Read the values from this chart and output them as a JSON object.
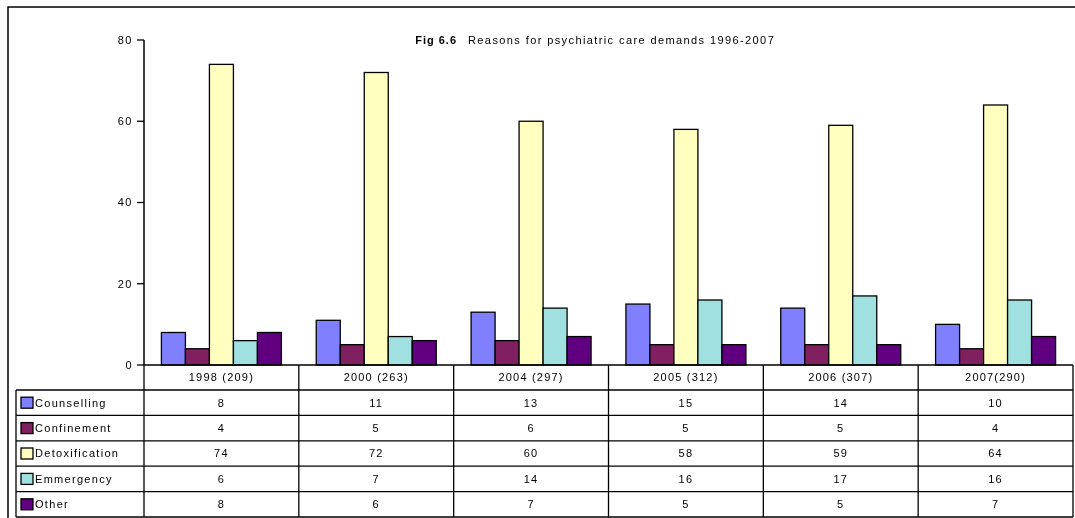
{
  "chart_data": {
    "type": "bar",
    "title": "Fig 6.6",
    "subtitle": "Reasons for psychiatric care demands 1996-2007",
    "categories": [
      "1998 (209)",
      "2000 (263)",
      "2004 (297)",
      "2005 (312)",
      "2006 (307)",
      "2007(290)"
    ],
    "series": [
      {
        "name": "Counselling",
        "color": "#8080ff",
        "values": [
          8,
          11,
          13,
          15,
          14,
          10
        ]
      },
      {
        "name": "Confinement",
        "color": "#802060",
        "values": [
          4,
          5,
          6,
          5,
          5,
          4
        ]
      },
      {
        "name": "Detoxification",
        "color": "#ffffc0",
        "values": [
          74,
          72,
          60,
          58,
          59,
          64
        ]
      },
      {
        "name": "Emmergency",
        "color": "#a0e0e0",
        "values": [
          6,
          7,
          14,
          16,
          17,
          16
        ]
      },
      {
        "name": "Other",
        "color": "#600080",
        "values": [
          8,
          6,
          7,
          5,
          5,
          7
        ]
      }
    ],
    "ylim": [
      0,
      80
    ],
    "yticks": [
      0,
      20,
      40,
      60,
      80
    ],
    "data_labels": true,
    "legend": "bottom"
  }
}
